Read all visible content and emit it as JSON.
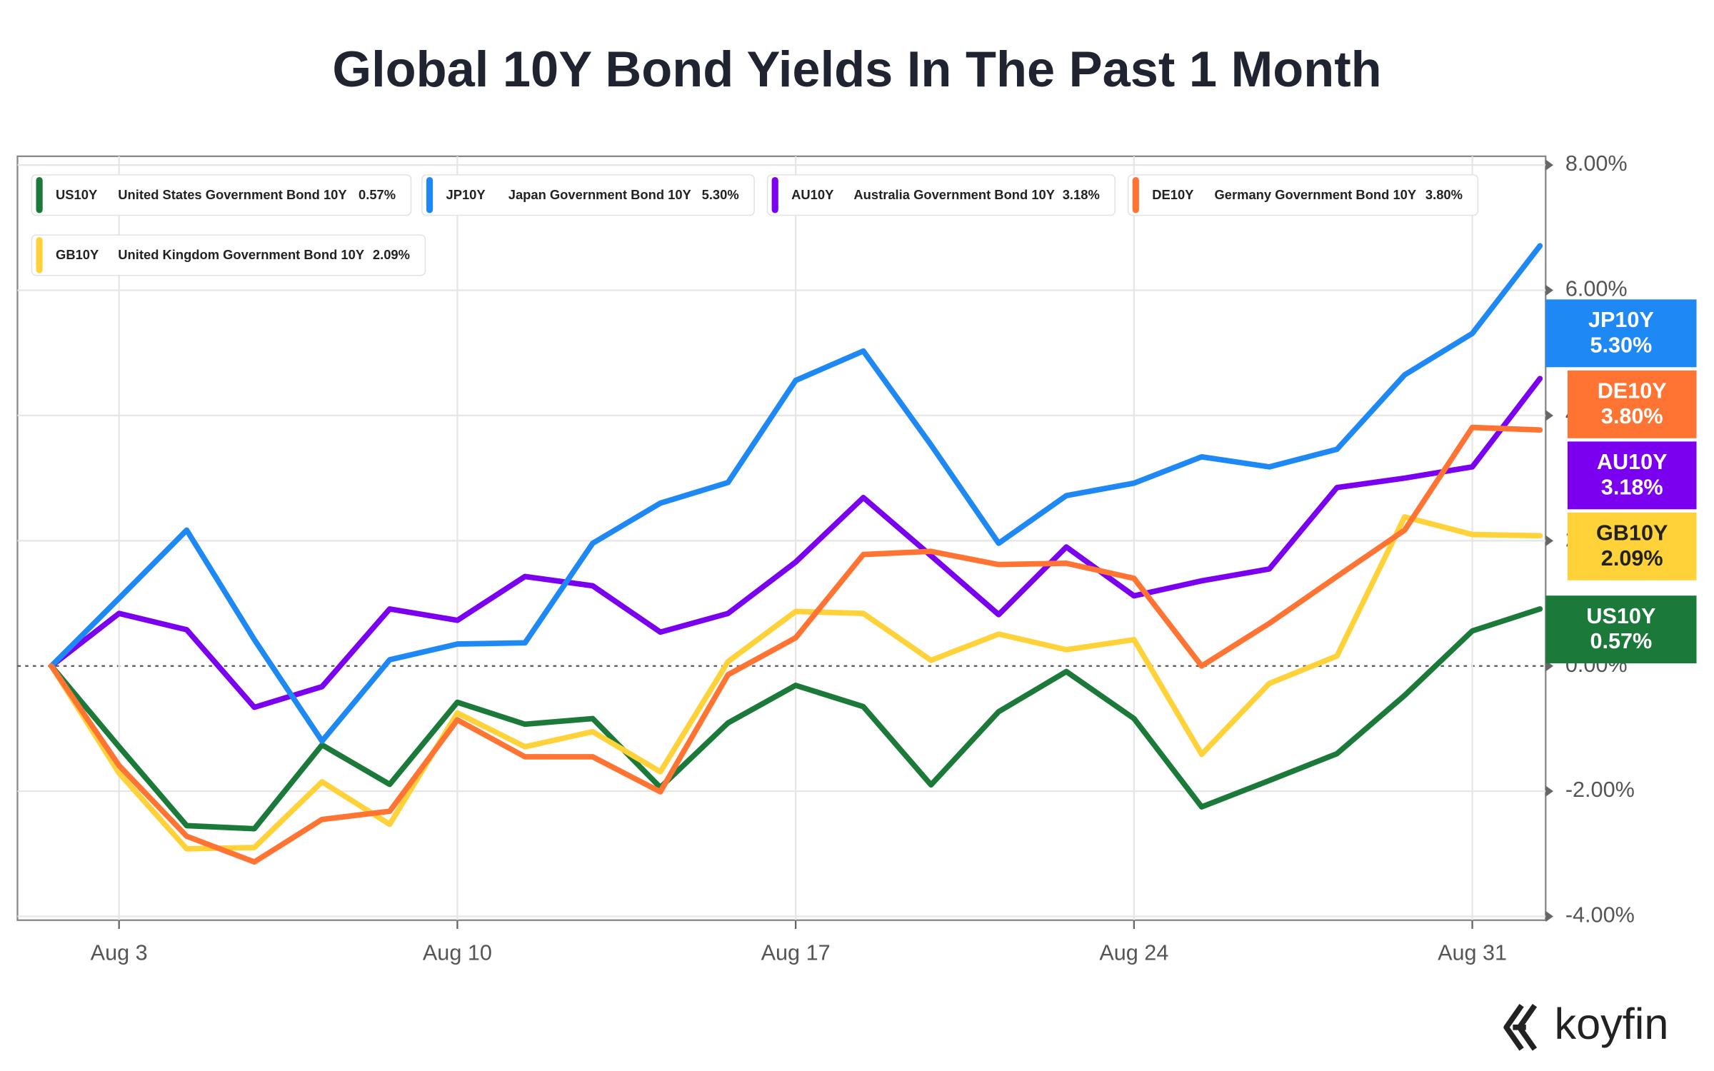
{
  "chart_data": {
    "type": "line",
    "title": "Global 10Y Bond Yields In The Past 1 Month",
    "categories": [
      null,
      "Aug 3",
      null,
      null,
      null,
      null,
      "Aug 10",
      null,
      null,
      null,
      null,
      "Aug 17",
      null,
      null,
      null,
      null,
      "Aug 24",
      null,
      null,
      null,
      null,
      "Aug 31",
      null
    ],
    "ylim": [
      -4.06,
      8.14
    ],
    "yticks": [
      {
        "value": -4,
        "label": "-4.00%"
      },
      {
        "value": -2,
        "label": "-2.00%"
      },
      {
        "value": 0,
        "label": "0.00%"
      },
      {
        "value": 2,
        "label": "2.00%"
      },
      {
        "value": 4,
        "label": "4.00%"
      },
      {
        "value": 6,
        "label": "6.00%"
      },
      {
        "value": 8,
        "label": "8.00%"
      }
    ],
    "grid": true,
    "series": [
      {
        "ticker": "US10Y",
        "name": "United States Government Bond 10Y",
        "value_label": "0.57%",
        "color": "#1b7a3a",
        "values": [
          0,
          -1.29,
          -2.55,
          -2.6,
          -1.26,
          -1.89,
          -0.58,
          -0.93,
          -0.84,
          -1.94,
          -0.91,
          -0.31,
          -0.65,
          -1.9,
          -0.73,
          -0.09,
          -0.84,
          -2.25,
          -1.83,
          -1.4,
          -0.47,
          0.56,
          0.91
        ]
      },
      {
        "ticker": "JP10Y",
        "name": "Japan Government Bond 10Y",
        "value_label": "5.30%",
        "color": "#1e88f5",
        "values": [
          0,
          1.08,
          2.17,
          0.42,
          -1.2,
          0.1,
          0.35,
          0.37,
          1.96,
          2.6,
          2.93,
          4.56,
          5.03,
          3.53,
          1.96,
          2.72,
          2.92,
          3.34,
          3.18,
          3.46,
          4.65,
          5.31,
          6.71
        ]
      },
      {
        "ticker": "AU10Y",
        "name": "Australia Government Bond 10Y",
        "value_label": "3.18%",
        "color": "#7b00f0",
        "values": [
          0,
          0.84,
          0.58,
          -0.66,
          -0.33,
          0.91,
          0.73,
          1.43,
          1.28,
          0.54,
          0.84,
          1.66,
          2.69,
          1.76,
          0.82,
          1.9,
          1.12,
          1.36,
          1.55,
          2.85,
          3.0,
          3.18,
          4.59
        ]
      },
      {
        "ticker": "DE10Y",
        "name": "Germany Government Bond 10Y",
        "value_label": "3.80%",
        "color": "#ff7433",
        "values": [
          0,
          -1.59,
          -2.72,
          -3.13,
          -2.45,
          -2.32,
          -0.86,
          -1.45,
          -1.45,
          -2.01,
          -0.14,
          0.45,
          1.78,
          1.83,
          1.62,
          1.64,
          1.4,
          0,
          0.68,
          1.43,
          2.17,
          3.81,
          3.77
        ]
      },
      {
        "ticker": "GB10Y",
        "name": "United Kingdom Government Bond 10Y",
        "value_label": "2.09%",
        "color": "#ffd23a",
        "values": [
          0,
          -1.71,
          -2.92,
          -2.9,
          -1.85,
          -2.53,
          -0.75,
          -1.29,
          -1.05,
          -1.69,
          0.07,
          0.87,
          0.84,
          0.09,
          0.51,
          0.26,
          0.42,
          -1.41,
          -0.28,
          0.16,
          2.38,
          2.1,
          2.08
        ]
      }
    ]
  },
  "brand": "koyfin"
}
